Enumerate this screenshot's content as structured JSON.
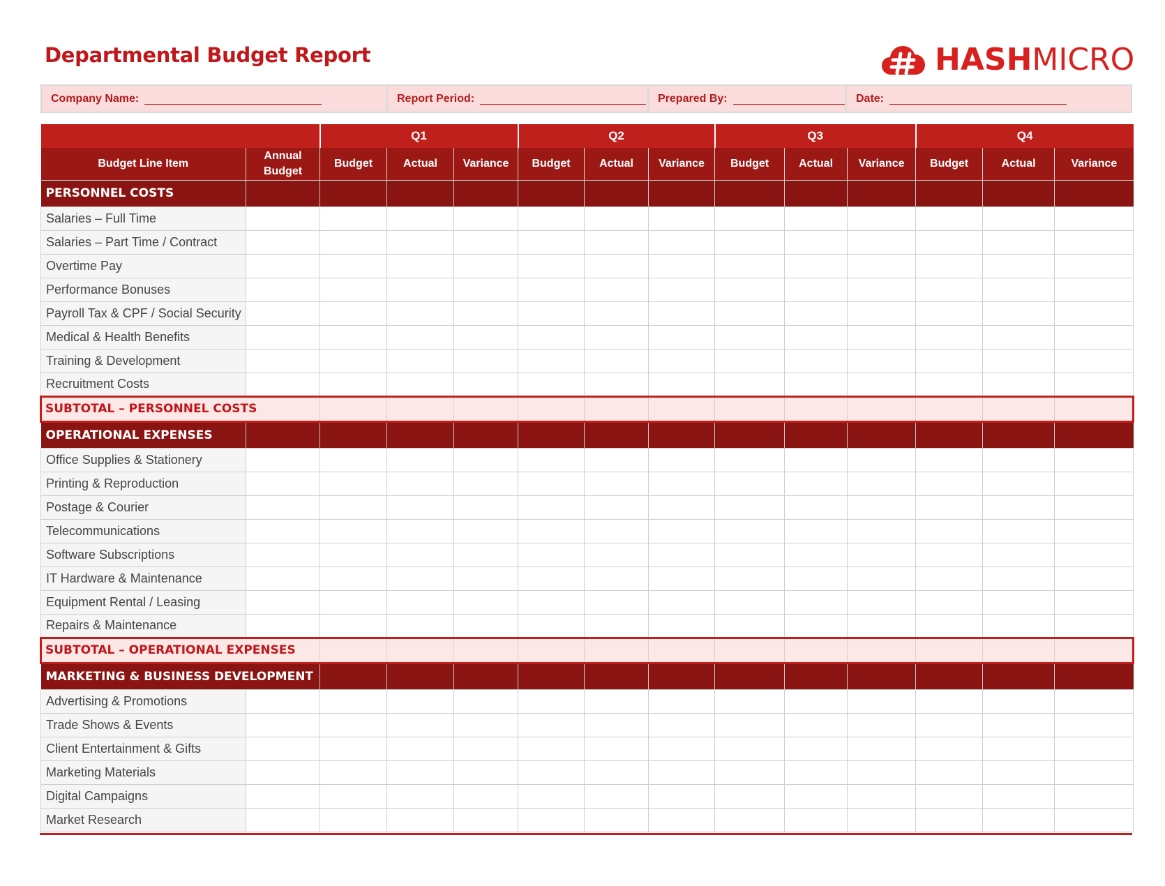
{
  "title": "Departmental Budget Report",
  "logo": {
    "brand_bold": "HASH",
    "brand_light": "MICRO",
    "icon": "cloud-hash-icon"
  },
  "info_bar": {
    "company_name": "Company Name:",
    "report_period": "Report Period:",
    "prepared_by": "Prepared By:",
    "date": "Date:"
  },
  "quarters": [
    "Q1",
    "Q2",
    "Q3",
    "Q4"
  ],
  "columns": {
    "line_item": "Budget Line Item",
    "annual_budget_1": "Annual",
    "annual_budget_2": "Budget",
    "budget": "Budget",
    "actual": "Actual",
    "variance": "Variance"
  },
  "sections": [
    {
      "title": "PERSONNEL COSTS",
      "items": [
        "Salaries – Full Time",
        "Salaries – Part Time / Contract",
        "Overtime Pay",
        "Performance Bonuses",
        "Payroll Tax & CPF / Social Security",
        "Medical & Health Benefits",
        "Training & Development",
        "Recruitment Costs"
      ],
      "subtotal": "SUBTOTAL – PERSONNEL COSTS"
    },
    {
      "title": "OPERATIONAL EXPENSES",
      "items": [
        "Office Supplies & Stationery",
        "Printing & Reproduction",
        "Postage & Courier",
        "Telecommunications",
        "Software Subscriptions",
        "IT Hardware & Maintenance",
        "Equipment Rental / Leasing",
        "Repairs & Maintenance"
      ],
      "subtotal": "SUBTOTAL – OPERATIONAL EXPENSES"
    },
    {
      "title": "MARKETING & BUSINESS DEVELOPMENT",
      "items": [
        "Advertising & Promotions",
        "Trade Shows & Events",
        "Client Entertainment & Gifts",
        "Marketing Materials",
        "Digital Campaigns",
        "Market Research"
      ]
    }
  ],
  "colors": {
    "primary_red": "#c0201c",
    "dark_red": "#8a1411",
    "subtotal_bg": "#fde8e8",
    "info_bg": "#fbdcdc"
  }
}
